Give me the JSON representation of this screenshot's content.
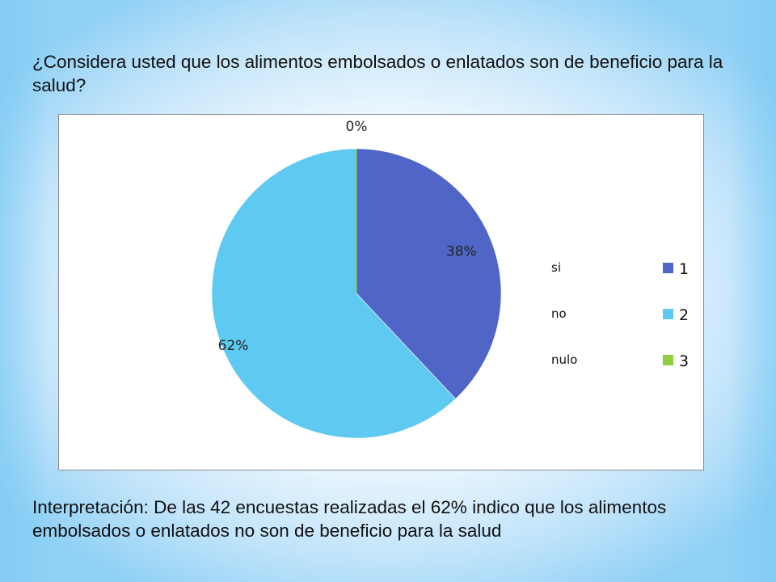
{
  "question": "¿Considera usted que los alimentos embolsados o enlatados son de beneficio   para la salud?",
  "chart_data": {
    "type": "pie",
    "categories": [
      "1",
      "2",
      "3"
    ],
    "values": [
      38,
      62,
      0
    ],
    "data_labels": [
      "38%",
      "62%",
      "0%"
    ],
    "colors": [
      "#4f66c6",
      "#5ec9f1",
      "#8fce3c"
    ],
    "side_labels": [
      "si",
      "no",
      "nulo"
    ],
    "legend_position": "right"
  },
  "interpretation": "Interpretación: De las 42 encuestas realizadas el 62% indico que los alimentos embolsados o enlatados no son de beneficio para la salud"
}
